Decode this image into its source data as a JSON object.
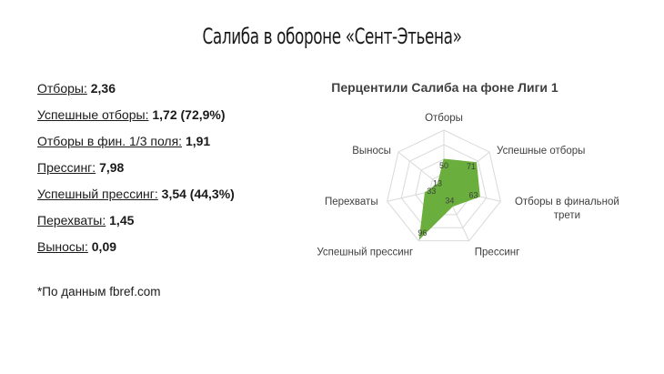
{
  "title": "Салиба в обороне «Сент-Этьена»",
  "stats": [
    {
      "label": "Отборы:",
      "value": "2,36"
    },
    {
      "label": "Успешные отборы:",
      "value": "1,72 (72,9%)"
    },
    {
      "label": "Отборы в фин. 1/3 поля:",
      "value": "1,91"
    },
    {
      "label": "Прессинг:",
      "value": "7,98"
    },
    {
      "label": "Успешный прессинг:",
      "value": "3,54 (44,3%)"
    },
    {
      "label": "Перехваты:",
      "value": "1,45"
    },
    {
      "label": "Выносы:",
      "value": "0,09"
    }
  ],
  "footnote": "*По данным fbref.com",
  "chart_data": {
    "type": "radar",
    "title": "Перцентили Салиба на фоне Лиги 1",
    "axes": [
      "Отборы",
      "Успешные отборы",
      "Отборы в финальной трети",
      "Прессинг",
      "Успешный прессинг",
      "Перехваты",
      "Выносы"
    ],
    "values": [
      50,
      71,
      63,
      34,
      96,
      33,
      13
    ],
    "range": [
      0,
      100
    ],
    "grid": true,
    "fill_color": "#6aaf3d",
    "grid_color": "#d9d9d9"
  }
}
